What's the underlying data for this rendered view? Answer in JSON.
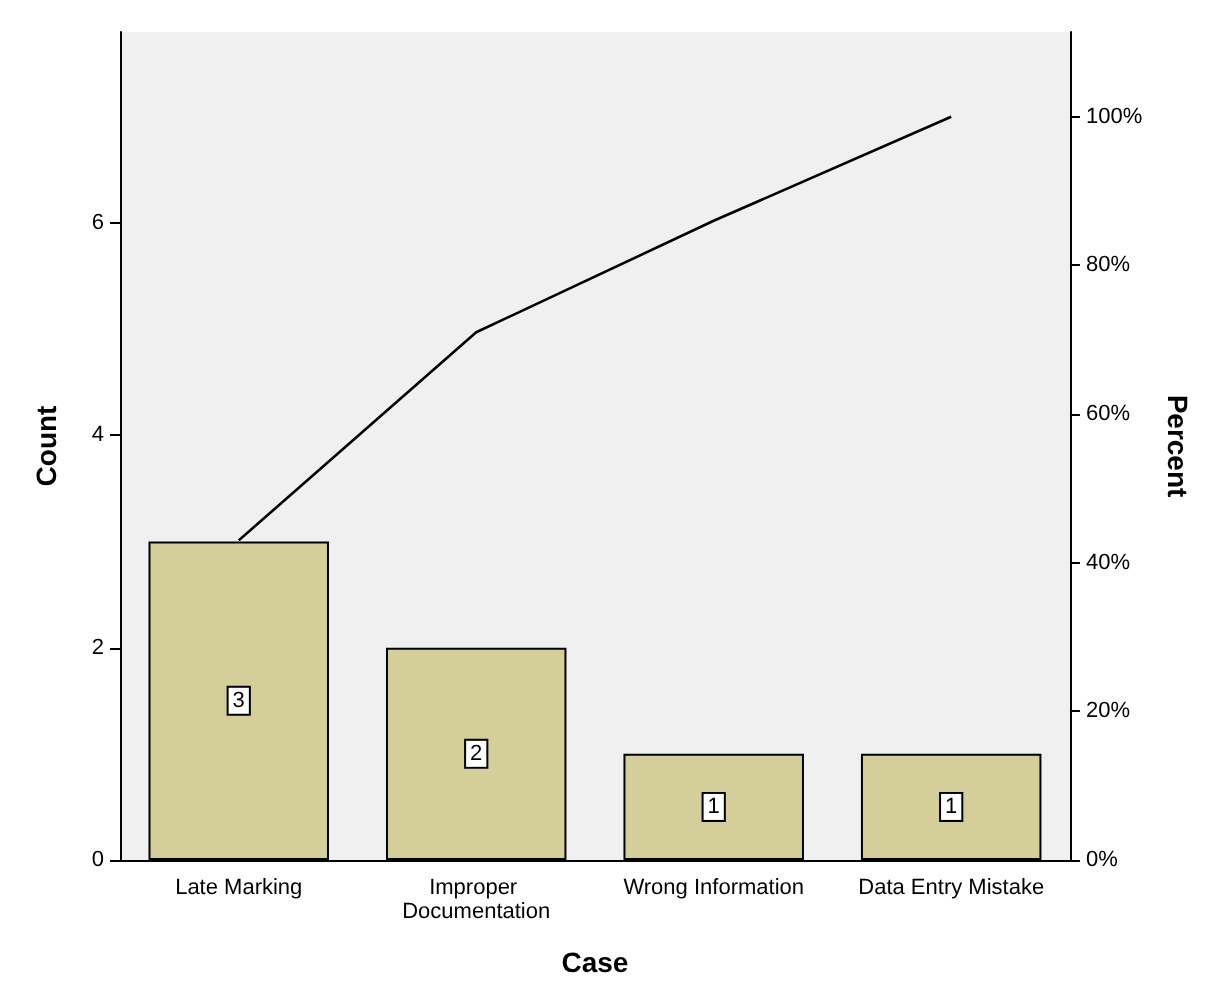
{
  "chart_data": {
    "type": "bar",
    "xlabel": "Case",
    "ylabel": "Count",
    "y2label": "Percent",
    "categories": [
      "Late Marking",
      "Improper Documentation",
      "Wrong Information",
      "Data Entry Mistake"
    ],
    "series": [
      {
        "color": "#d3ce9a",
        "values": [
          3,
          2,
          1,
          1
        ],
        "value_labels": [
          "3",
          "2",
          "1",
          "1"
        ]
      },
      {
        "type": "line",
        "axis": "y2",
        "color": "#000000",
        "values": [
          43,
          71,
          86,
          100
        ],
        "marker": "none"
      }
    ],
    "ylim": [
      0,
      7.8
    ],
    "yticks": [
      0,
      2,
      4,
      6
    ],
    "y2lim": [
      0,
      111.4
    ],
    "y2ticks": [
      {
        "value": 0,
        "label": "0%"
      },
      {
        "value": 20,
        "label": "20%"
      },
      {
        "value": 40,
        "label": "40%"
      },
      {
        "value": 60,
        "label": "60%"
      },
      {
        "value": 80,
        "label": "80%"
      },
      {
        "value": 100,
        "label": "100%"
      }
    ],
    "grid": false
  }
}
